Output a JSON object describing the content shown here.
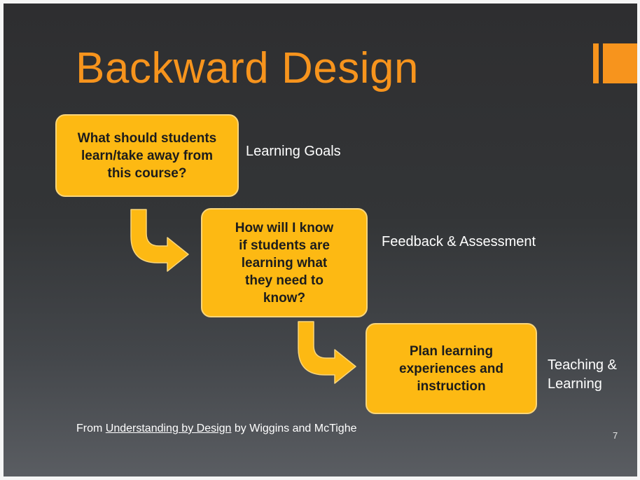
{
  "slide": {
    "title": "Backward Design",
    "steps": [
      {
        "question": "What should students\nlearn/take away from\nthis course?",
        "label": "Learning Goals"
      },
      {
        "question": "How will I know\nif students are\nlearning what\nthey need to\nknow?",
        "label": "Feedback & Assessment"
      },
      {
        "question": "Plan learning\nexperiences and\ninstruction",
        "label": "Teaching &\nLearning"
      }
    ],
    "footer": {
      "prefix": "From ",
      "book": "Understanding by Design",
      "suffix": " by Wiggins and McTighe"
    },
    "page_number": "7"
  },
  "colors": {
    "accent": "#f7941d",
    "box_fill": "#fdb913",
    "box_border": "#f9d57a"
  },
  "icons": {
    "arrow": "curved-down-right-arrow-icon"
  }
}
